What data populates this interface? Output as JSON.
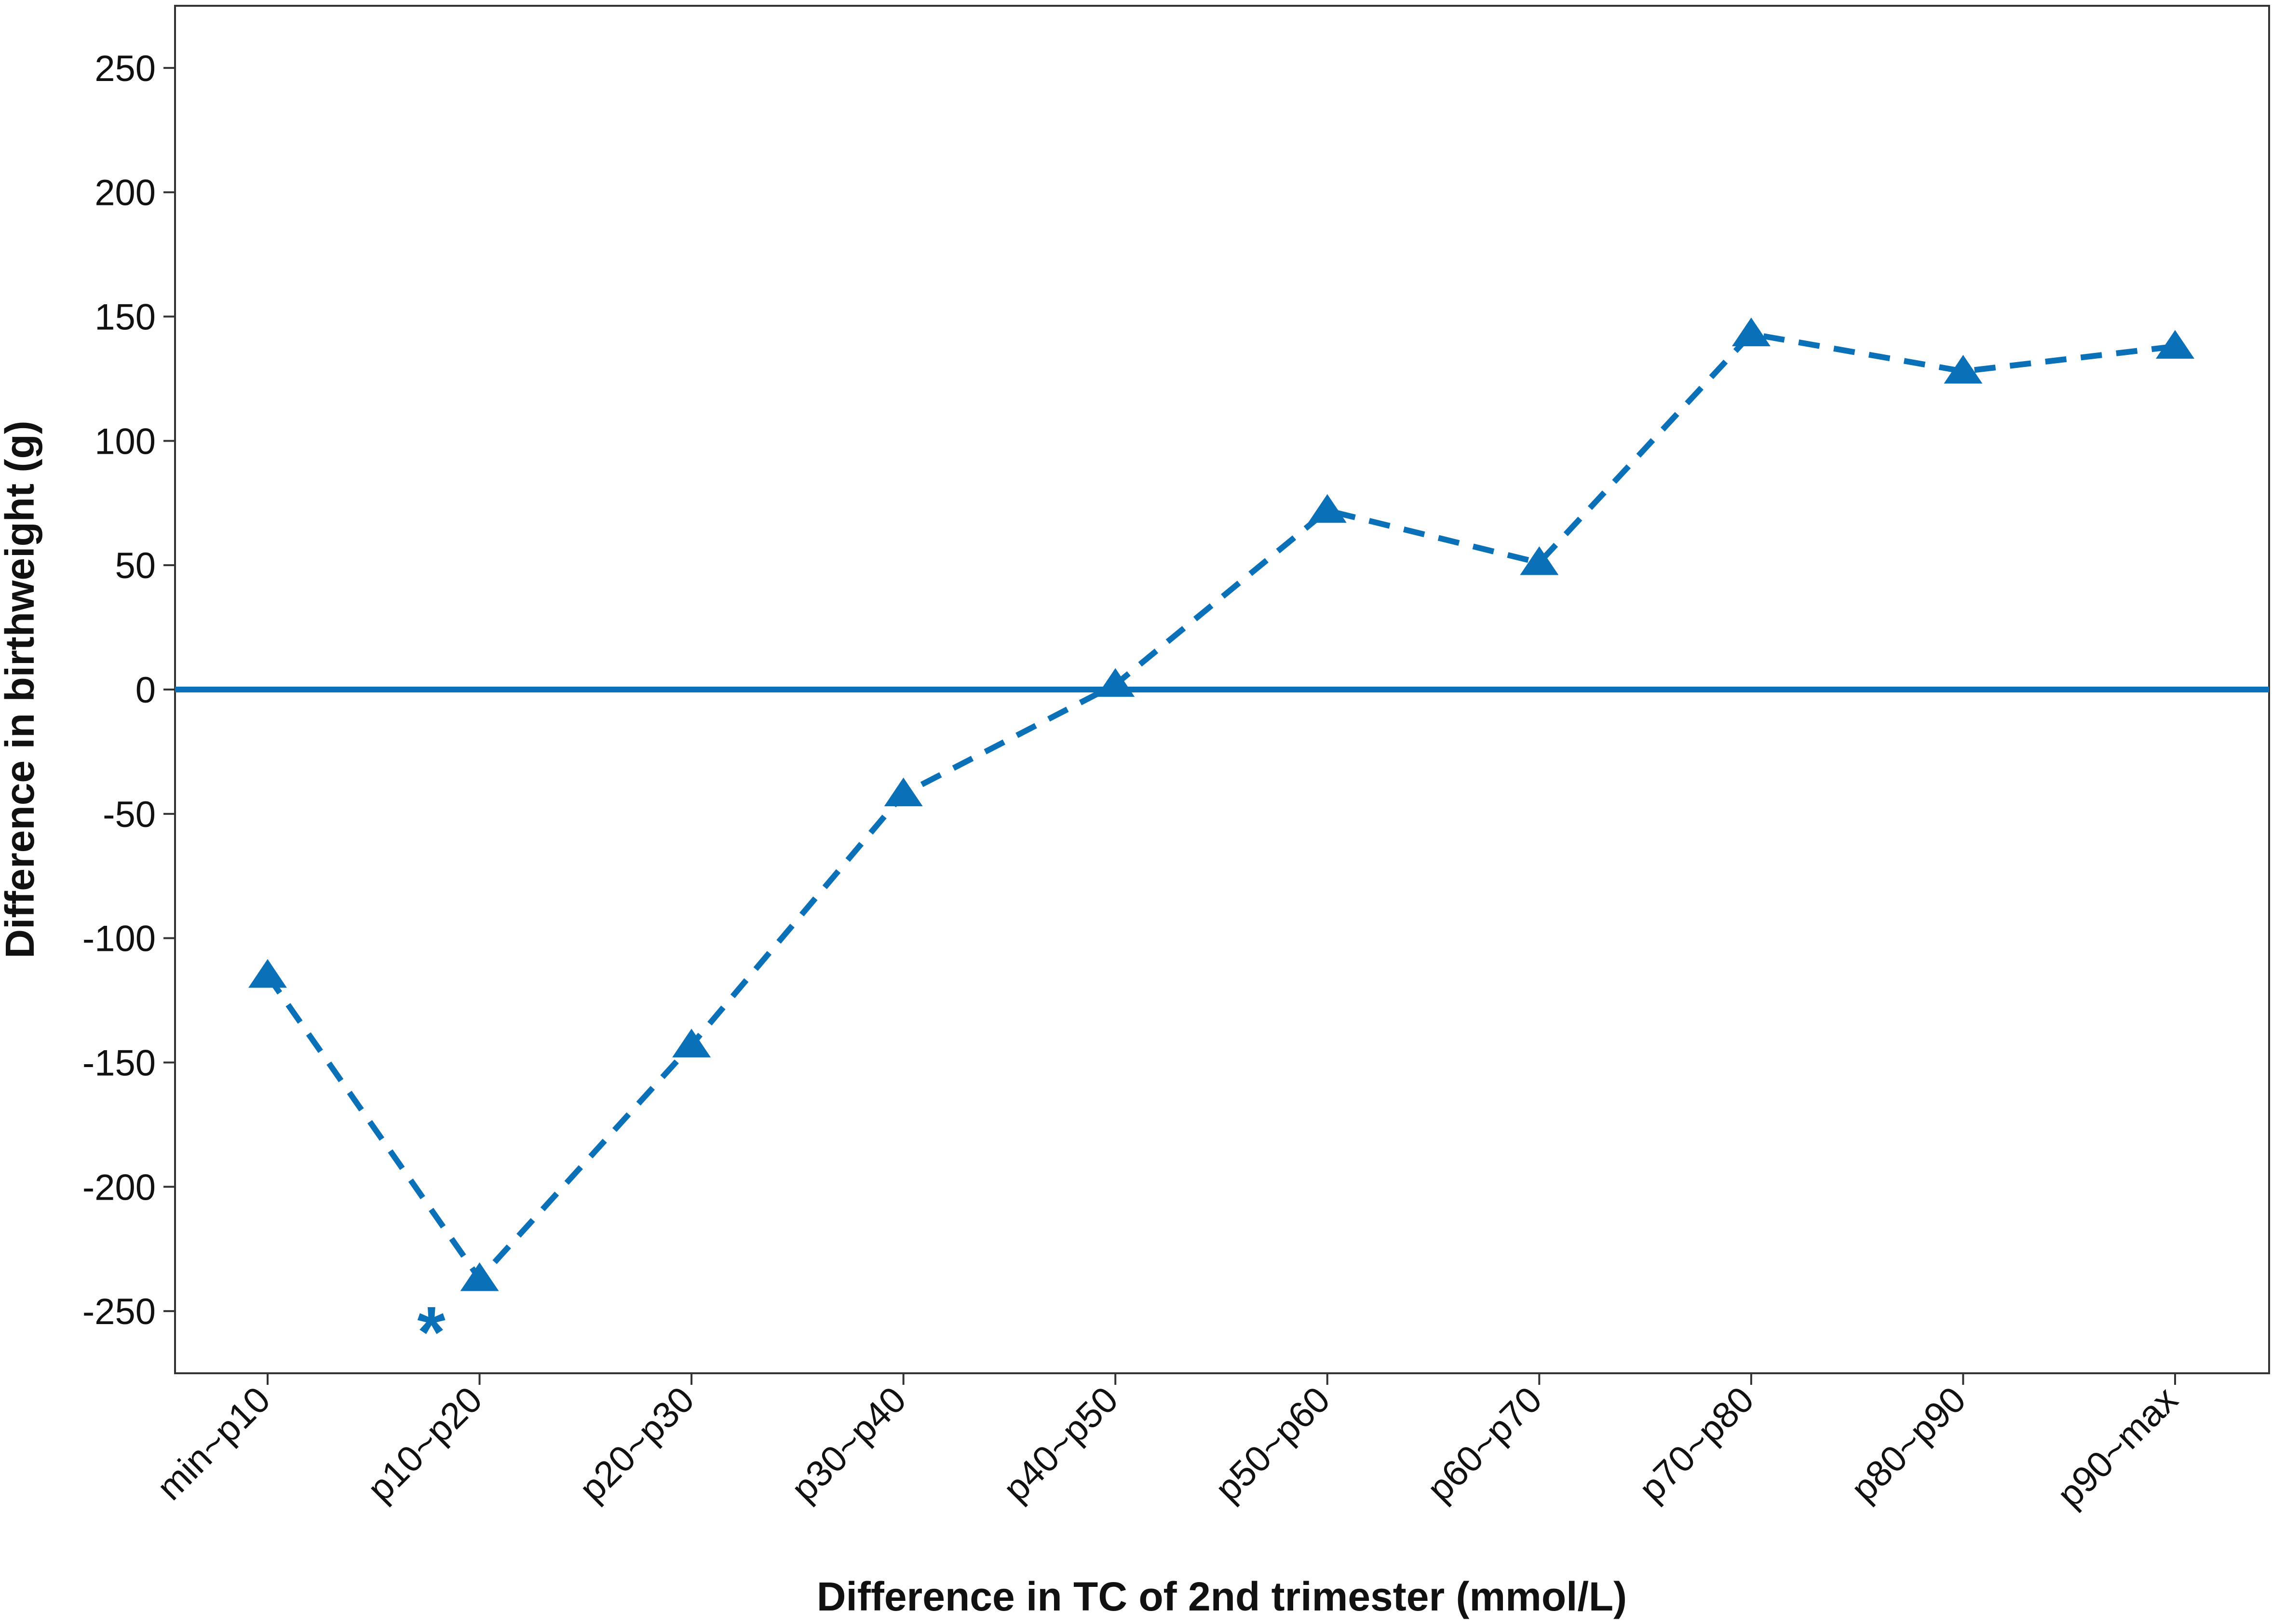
{
  "chart_data": {
    "type": "line",
    "title": "",
    "xlabel": "Difference in TC of 2nd trimester (mmol/L)",
    "ylabel": "Difference in birthweight (g)",
    "categories": [
      "min~p10",
      "p10~p20",
      "p20~p30",
      "p30~p40",
      "p40~p50",
      "p50~p60",
      "p60~p70",
      "p70~p80",
      "p80~p90",
      "p90~max"
    ],
    "series": [
      {
        "values": [
          -115,
          -237,
          -143,
          -42,
          2,
          72,
          51,
          143,
          128,
          138
        ],
        "color": "#0A70B8",
        "line_style": "dashed",
        "marker": "triangle"
      }
    ],
    "ylim": [
      -275,
      275
    ],
    "yticks": [
      -250,
      -200,
      -150,
      -100,
      -50,
      0,
      50,
      100,
      150,
      200,
      250
    ],
    "reference_line": {
      "y": 0,
      "color": "#0A70B8"
    },
    "annotations": [
      {
        "text": "*",
        "category": "p10~p20",
        "y": -250
      }
    ],
    "grid": false,
    "legend": "none"
  }
}
